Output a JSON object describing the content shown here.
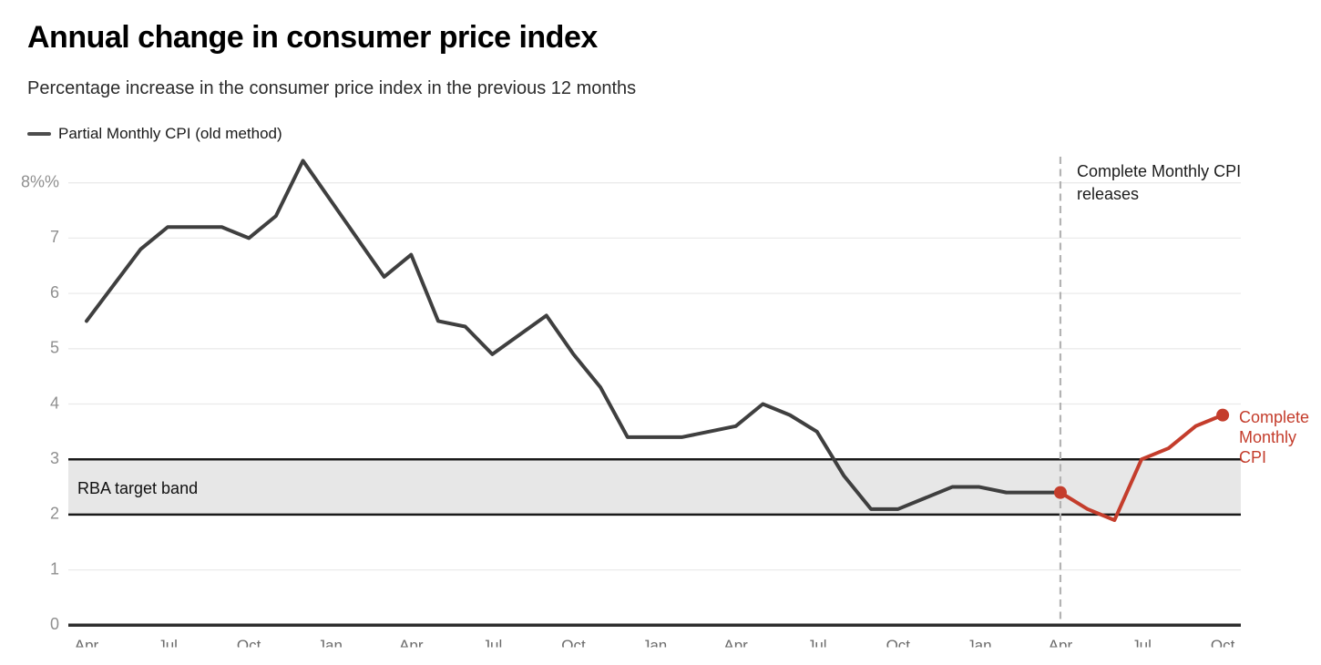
{
  "header": {
    "title": "Annual change in consumer price index",
    "subtitle": "Percentage increase in the consumer price index in the previous 12 months"
  },
  "legend": {
    "items": [
      {
        "label": "Partial Monthly CPI (old method)",
        "color": "#4d4d4d"
      }
    ]
  },
  "annotations": {
    "dashed_line_label": "Complete Monthly CPI releases",
    "band_label": "RBA target band",
    "red_series_label": "Complete Monthly CPI"
  },
  "colors": {
    "old_series": "#3f3f3f",
    "new_series": "#c43d2c",
    "band_fill": "#e7e7e7",
    "band_border": "#1a1a1a",
    "gridline": "#ebebeb",
    "axis": "#2e2e2e",
    "dashed_line": "#b3b3b3",
    "y_tick_text": "#8f8f8f",
    "x_tick_text": "#6b6b6b"
  },
  "chart_data": {
    "type": "line",
    "title": "Annual change in consumer price index",
    "subtitle": "Percentage increase in the consumer price index in the previous 12 months",
    "x_axis": {
      "unit": "months",
      "start_month": "Apr 2022",
      "end_month": "Oct 2025",
      "tick_interval_months": 3,
      "tick_labels": [
        "Apr",
        "Jul",
        "Oct",
        "Jan",
        "Apr",
        "Jul",
        "Oct",
        "Jan",
        "Apr",
        "Jul",
        "Oct",
        "Jan",
        "Apr",
        "Jul",
        "Oct"
      ]
    },
    "y_axis": {
      "range": [
        0,
        8
      ],
      "tick_labels": [
        "8%%",
        "7",
        "6",
        "5",
        "4",
        "3",
        "2",
        "1",
        "0"
      ],
      "tick_values": [
        8,
        7,
        6,
        5,
        4,
        3,
        2,
        1,
        0
      ]
    },
    "target_band": {
      "label": "RBA target band",
      "from": 2,
      "to": 3
    },
    "dashed_line_month": "Apr 2025",
    "legend_position": "top-left",
    "grid": true,
    "series": [
      {
        "name": "Partial Monthly CPI (old method)",
        "color": "#3f3f3f",
        "markers": [],
        "points": [
          {
            "month": "Apr 2022",
            "value": 5.5
          },
          {
            "month": "Jun 2022",
            "value": 6.8
          },
          {
            "month": "Jul 2022",
            "value": 7.2
          },
          {
            "month": "Sep 2022",
            "value": 7.2
          },
          {
            "month": "Oct 2022",
            "value": 7.0
          },
          {
            "month": "Nov 2022",
            "value": 7.4
          },
          {
            "month": "Dec 2022",
            "value": 8.4
          },
          {
            "month": "Mar 2023",
            "value": 6.3
          },
          {
            "month": "Apr 2023",
            "value": 6.7
          },
          {
            "month": "May 2023",
            "value": 5.5
          },
          {
            "month": "Jun 2023",
            "value": 5.4
          },
          {
            "month": "Jul 2023",
            "value": 4.9
          },
          {
            "month": "Sep 2023",
            "value": 5.6
          },
          {
            "month": "Oct 2023",
            "value": 4.9
          },
          {
            "month": "Nov 2023",
            "value": 4.3
          },
          {
            "month": "Dec 2023",
            "value": 3.4
          },
          {
            "month": "Feb 2024",
            "value": 3.4
          },
          {
            "month": "Apr 2024",
            "value": 3.6
          },
          {
            "month": "May 2024",
            "value": 4.0
          },
          {
            "month": "Jun 2024",
            "value": 3.8
          },
          {
            "month": "Jul 2024",
            "value": 3.5
          },
          {
            "month": "Aug 2024",
            "value": 2.7
          },
          {
            "month": "Sep 2024",
            "value": 2.1
          },
          {
            "month": "Oct 2024",
            "value": 2.1
          },
          {
            "month": "Dec 2024",
            "value": 2.5
          },
          {
            "month": "Jan 2025",
            "value": 2.5
          },
          {
            "month": "Feb 2025",
            "value": 2.4
          },
          {
            "month": "Apr 2025",
            "value": 2.4
          }
        ]
      },
      {
        "name": "Complete Monthly CPI",
        "color": "#c43d2c",
        "markers": [
          "first",
          "last"
        ],
        "points": [
          {
            "month": "Apr 2025",
            "value": 2.4
          },
          {
            "month": "May 2025",
            "value": 2.1
          },
          {
            "month": "Jun 2025",
            "value": 1.9
          },
          {
            "month": "Jul 2025",
            "value": 3.0
          },
          {
            "month": "Aug 2025",
            "value": 3.2
          },
          {
            "month": "Sep 2025",
            "value": 3.6
          },
          {
            "month": "Oct 2025",
            "value": 3.8
          }
        ]
      }
    ]
  }
}
